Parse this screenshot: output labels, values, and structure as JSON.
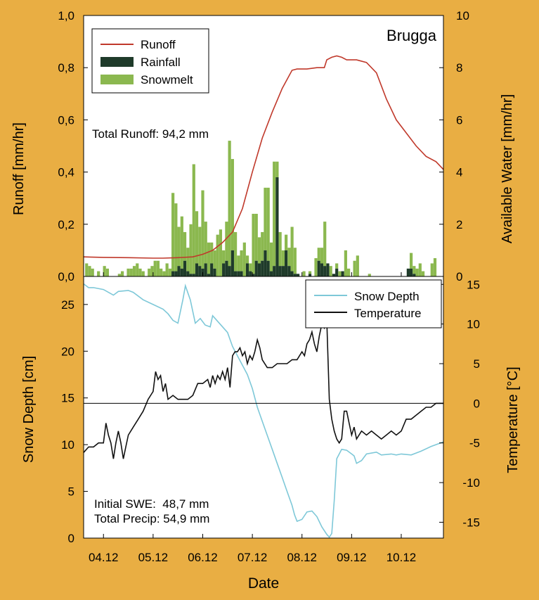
{
  "colors": {
    "background": "#e9ae43",
    "runoff": "#c0392b",
    "rainfall": "#1f3b2a",
    "snowmelt": "#8bb84f",
    "snow_depth": "#7ec8d8",
    "temperature": "#111111"
  },
  "xaxis": {
    "label": "Date",
    "ticks": [
      "04.12",
      "05.12",
      "06.12",
      "07.12",
      "08.12",
      "09.12",
      "10.12"
    ]
  },
  "chart_data": [
    {
      "type": "line+bar",
      "title": "Brugga",
      "ylabel": "Runoff [mm/hr]",
      "y2label": "Available Water [mm/hr]",
      "ylim": [
        0,
        1.0
      ],
      "y2lim": [
        0,
        10
      ],
      "yticks": [
        "0,0",
        "0,2",
        "0,4",
        "0,6",
        "0,8",
        "1,0"
      ],
      "y2ticks": [
        "0",
        "2",
        "4",
        "6",
        "8",
        "10"
      ],
      "xlim": [
        3.6,
        10.85
      ],
      "annotation": "Total Runoff: 94,2 mm",
      "legend": {
        "position": "top-left",
        "entries": [
          "Runoff",
          "Rainfall",
          "Snowmelt"
        ]
      },
      "runoff": {
        "name": "Runoff",
        "x": [
          3.6,
          4.0,
          4.5,
          5.0,
          5.2,
          5.5,
          5.8,
          6.0,
          6.2,
          6.4,
          6.6,
          6.8,
          7.0,
          7.2,
          7.4,
          7.6,
          7.8,
          7.9,
          8.1,
          8.3,
          8.45,
          8.5,
          8.6,
          8.7,
          8.8,
          8.9,
          9.1,
          9.3,
          9.5,
          9.7,
          9.9,
          10.1,
          10.3,
          10.5,
          10.7,
          10.85
        ],
        "y": [
          0.075,
          0.073,
          0.072,
          0.07,
          0.07,
          0.072,
          0.075,
          0.085,
          0.1,
          0.13,
          0.17,
          0.26,
          0.4,
          0.53,
          0.63,
          0.72,
          0.79,
          0.795,
          0.795,
          0.8,
          0.8,
          0.83,
          0.84,
          0.845,
          0.84,
          0.83,
          0.83,
          0.82,
          0.78,
          0.68,
          0.6,
          0.55,
          0.5,
          0.46,
          0.44,
          0.41
        ]
      },
      "available_water": {
        "x": [
          3.66,
          3.72,
          3.78,
          3.84,
          3.9,
          3.96,
          4.02,
          4.08,
          4.14,
          4.2,
          4.26,
          4.32,
          4.38,
          4.44,
          4.5,
          4.56,
          4.62,
          4.68,
          4.74,
          4.8,
          4.86,
          4.92,
          4.98,
          5.04,
          5.1,
          5.16,
          5.22,
          5.28,
          5.34,
          5.4,
          5.46,
          5.52,
          5.58,
          5.64,
          5.7,
          5.76,
          5.82,
          5.88,
          5.94,
          6.0,
          6.06,
          6.12,
          6.18,
          6.24,
          6.3,
          6.36,
          6.42,
          6.48,
          6.54,
          6.6,
          6.66,
          6.72,
          6.78,
          6.84,
          6.9,
          6.96,
          7.02,
          7.08,
          7.14,
          7.2,
          7.26,
          7.32,
          7.38,
          7.44,
          7.5,
          7.56,
          7.62,
          7.68,
          7.74,
          7.8,
          7.86,
          7.92,
          7.98,
          8.04,
          8.1,
          8.16,
          8.22,
          8.28,
          8.34,
          8.4,
          8.46,
          8.52,
          8.58,
          8.64,
          8.7,
          8.76,
          8.82,
          8.88,
          8.94,
          9.0,
          9.06,
          9.12,
          9.18,
          9.24,
          9.3,
          9.36,
          9.42,
          9.48,
          9.54,
          9.6,
          9.66,
          9.72,
          9.78,
          9.84,
          9.9,
          9.96,
          10.02,
          10.08,
          10.14,
          10.2,
          10.26,
          10.32,
          10.38,
          10.44,
          10.5,
          10.56,
          10.62,
          10.68,
          10.74,
          10.8
        ],
        "rainfall": [
          0,
          0,
          0,
          0,
          0,
          0,
          0,
          0,
          0,
          0,
          0,
          0,
          0,
          0,
          0,
          0,
          0,
          0,
          0,
          0,
          0,
          0,
          0,
          0,
          0,
          0,
          0,
          0,
          0,
          0.2,
          0.2,
          0.4,
          0.3,
          0.6,
          0.2,
          0.1,
          0.1,
          0.5,
          0.4,
          0.3,
          0.5,
          0.1,
          0.5,
          0.3,
          0,
          0,
          0.5,
          0.6,
          0.4,
          1.0,
          0.2,
          0.2,
          0.2,
          0,
          0.5,
          0.2,
          0.1,
          0.6,
          0.5,
          0.6,
          1.0,
          0.6,
          0.2,
          0.4,
          3.8,
          0.4,
          0.4,
          1.0,
          0.4,
          0.2,
          0.1,
          0.1,
          0,
          0,
          0,
          0.1,
          0,
          0,
          0.6,
          0.5,
          0.4,
          0.5,
          0,
          0.1,
          0.3,
          0,
          0.2,
          0,
          0,
          0,
          0,
          0,
          0,
          0,
          0,
          0,
          0,
          0,
          0,
          0,
          0,
          0,
          0,
          0,
          0,
          0,
          0,
          0,
          0.3,
          0.3,
          0.1,
          0,
          0,
          0,
          0,
          0,
          0,
          0,
          0,
          0
        ],
        "snowmelt": [
          0.5,
          0.4,
          0.3,
          0,
          0.2,
          0,
          0.4,
          0.3,
          0,
          0,
          0,
          0.1,
          0.2,
          0,
          0.3,
          0.3,
          0.4,
          0.5,
          0.3,
          0.2,
          0,
          0.3,
          0.4,
          0.6,
          0.6,
          0.3,
          0.2,
          0.5,
          0.3,
          3.0,
          2.6,
          1.5,
          2.0,
          1.1,
          0.9,
          1.9,
          4.2,
          2.0,
          1.5,
          3.0,
          1.6,
          1.2,
          0.8,
          0.7,
          1.6,
          1.8,
          0.5,
          1.5,
          4.8,
          3.5,
          1.5,
          0.6,
          0.8,
          1.3,
          0.3,
          0.3,
          2.3,
          1.8,
          1.0,
          1.1,
          2.4,
          2.8,
          1.1,
          4.0,
          0.6,
          1.3,
          0.6,
          0.6,
          0.7,
          1.7,
          1.0,
          0,
          0,
          0.2,
          0,
          0.1,
          0,
          0.7,
          0.5,
          0.6,
          1.7,
          0,
          0.4,
          0,
          0.2,
          0.2,
          0,
          1.0,
          0.3,
          0,
          0.6,
          0.8,
          0,
          0,
          0,
          0.1,
          0,
          0,
          0,
          0,
          0,
          0,
          0,
          0,
          0,
          0,
          0,
          0,
          0,
          0.6,
          0.3,
          0.3,
          0.5,
          0.2,
          0,
          0,
          0.5,
          0.7,
          0,
          0
        ]
      }
    },
    {
      "type": "line",
      "ylabel": "Snow Depth [cm]",
      "y2label": "Temperature [°C]",
      "ylim": [
        0,
        28
      ],
      "y2lim": [
        -17,
        16
      ],
      "yticks": [
        "0",
        "5",
        "10",
        "15",
        "20",
        "25"
      ],
      "y2ticks": [
        "-15",
        "-10",
        "-5",
        "0",
        "5",
        "10",
        "15"
      ],
      "xlim": [
        3.6,
        10.85
      ],
      "annotation_lines": [
        "Initial SWE:  48,7 mm",
        "Total Precip: 54,9 mm"
      ],
      "legend": {
        "position": "top-right",
        "entries": [
          "Snow Depth",
          "Temperature"
        ]
      },
      "snow_depth": {
        "name": "Snow Depth",
        "x": [
          3.6,
          3.7,
          3.8,
          4.0,
          4.2,
          4.3,
          4.5,
          4.6,
          4.8,
          5.0,
          5.2,
          5.3,
          5.4,
          5.5,
          5.6,
          5.65,
          5.75,
          5.85,
          5.95,
          6.05,
          6.15,
          6.2,
          6.3,
          6.4,
          6.5,
          6.6,
          6.7,
          6.8,
          6.9,
          7.0,
          7.1,
          7.2,
          7.3,
          7.4,
          7.5,
          7.6,
          7.7,
          7.8,
          7.85,
          7.9,
          8.0,
          8.1,
          8.2,
          8.3,
          8.4,
          8.5,
          8.55,
          8.6,
          8.65,
          8.7,
          8.8,
          8.9,
          9.0,
          9.05,
          9.1,
          9.2,
          9.3,
          9.5,
          9.6,
          9.8,
          9.9,
          10.0,
          10.2,
          10.4,
          10.6,
          10.85
        ],
        "y": [
          27.2,
          26.8,
          26.8,
          26.6,
          26.0,
          26.4,
          26.5,
          26.3,
          25.5,
          25.0,
          24.5,
          24.0,
          23.3,
          23.0,
          25.5,
          27.0,
          25.5,
          23.0,
          23.5,
          22.8,
          22.6,
          23.8,
          23.2,
          22.6,
          22.0,
          20.5,
          19.5,
          18.5,
          17.5,
          16.0,
          14.0,
          12.5,
          11.0,
          9.5,
          8.0,
          6.5,
          5.0,
          3.5,
          2.5,
          1.8,
          2.0,
          2.8,
          2.9,
          2.3,
          1.2,
          0.4,
          0.1,
          0.5,
          4.0,
          8.5,
          9.5,
          9.4,
          9.0,
          8.8,
          8.0,
          8.3,
          9.0,
          9.2,
          8.9,
          9.0,
          8.9,
          9.0,
          8.9,
          9.3,
          9.8,
          10.3
        ]
      },
      "temperature": {
        "name": "Temperature",
        "x": [
          3.6,
          3.7,
          3.8,
          3.9,
          4.0,
          4.05,
          4.1,
          4.15,
          4.2,
          4.25,
          4.3,
          4.35,
          4.4,
          4.45,
          4.5,
          4.6,
          4.7,
          4.8,
          4.9,
          5.0,
          5.05,
          5.1,
          5.15,
          5.2,
          5.25,
          5.3,
          5.4,
          5.5,
          5.6,
          5.7,
          5.8,
          5.9,
          6.0,
          6.1,
          6.15,
          6.2,
          6.25,
          6.3,
          6.35,
          6.4,
          6.45,
          6.5,
          6.55,
          6.6,
          6.65,
          6.7,
          6.75,
          6.8,
          6.85,
          6.9,
          6.95,
          7.0,
          7.05,
          7.1,
          7.15,
          7.2,
          7.3,
          7.4,
          7.5,
          7.6,
          7.7,
          7.8,
          7.9,
          8.0,
          8.05,
          8.1,
          8.15,
          8.2,
          8.25,
          8.3,
          8.35,
          8.4,
          8.45,
          8.5,
          8.55,
          8.6,
          8.65,
          8.7,
          8.75,
          8.8,
          8.85,
          8.9,
          8.95,
          9.0,
          9.05,
          9.1,
          9.2,
          9.3,
          9.4,
          9.5,
          9.6,
          9.7,
          9.8,
          9.9,
          10.0,
          10.1,
          10.2,
          10.3,
          10.4,
          10.5,
          10.6,
          10.7,
          10.8,
          10.85
        ],
        "y": [
          -6.2,
          -5.5,
          -5.5,
          -5.0,
          -5.0,
          -2.5,
          -4.0,
          -5.0,
          -7.0,
          -5.0,
          -3.5,
          -5.0,
          -7.0,
          -5.5,
          -4.0,
          -3.0,
          -2.0,
          -1.0,
          0.5,
          1.5,
          4.0,
          3.0,
          3.5,
          1.5,
          2.5,
          0.5,
          1.0,
          0.5,
          0.5,
          0.5,
          1.0,
          2.5,
          2.5,
          3.0,
          2.0,
          3.5,
          2.5,
          3.5,
          3.0,
          4.0,
          3.0,
          4.5,
          2.0,
          6.0,
          6.5,
          6.5,
          7.0,
          6.0,
          6.5,
          5.0,
          6.0,
          5.5,
          6.5,
          8.0,
          7.0,
          5.5,
          4.5,
          4.5,
          5.0,
          5.0,
          5.0,
          5.5,
          5.5,
          6.5,
          6.0,
          7.5,
          8.0,
          9.0,
          7.5,
          6.5,
          8.5,
          10.0,
          9.5,
          10.5,
          0.5,
          -2.0,
          -3.5,
          -4.5,
          -5.0,
          -4.5,
          -1.0,
          -1.0,
          -2.5,
          -4.0,
          -3.0,
          -4.5,
          -3.5,
          -4.0,
          -3.5,
          -4.0,
          -4.5,
          -4.0,
          -3.5,
          -4.0,
          -3.5,
          -2.0,
          -2.0,
          -1.5,
          -1.0,
          -0.5,
          -0.5,
          0.0,
          0.0,
          0.0
        ]
      }
    }
  ]
}
